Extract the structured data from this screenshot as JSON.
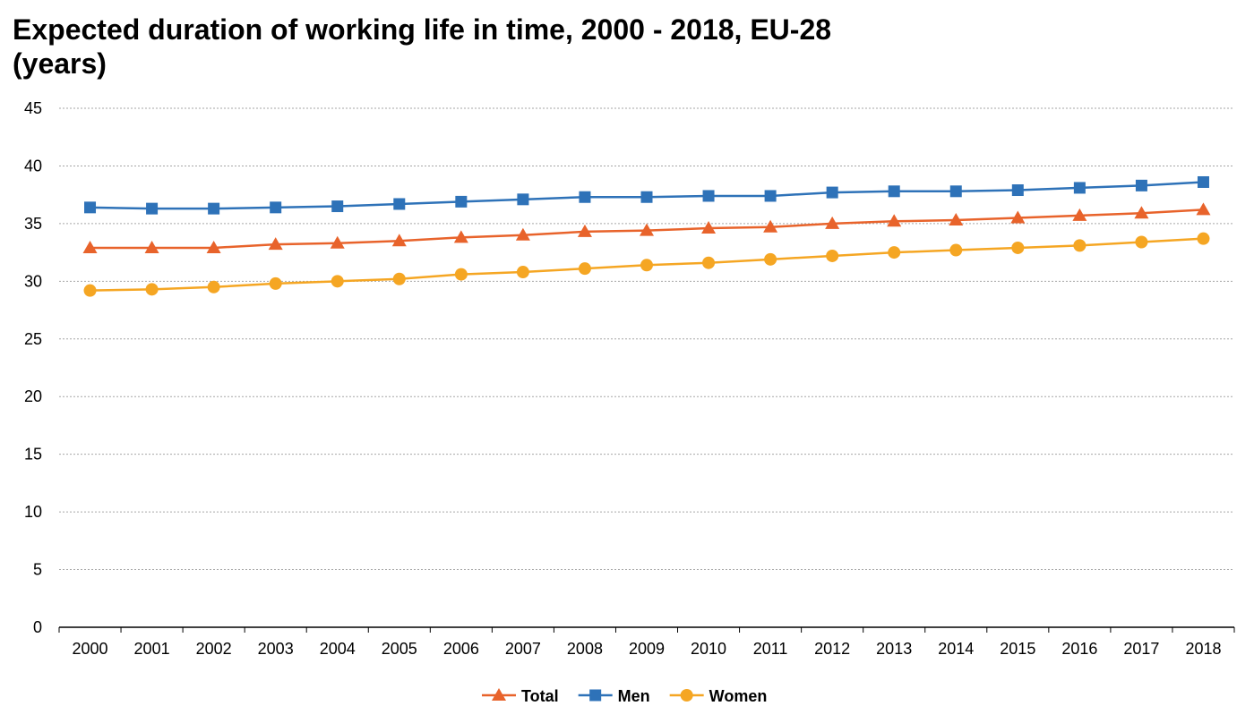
{
  "chart_data": {
    "type": "line",
    "title_lines": [
      "Expected duration of working life in time, 2000 - 2018, EU-28",
      "(years)"
    ],
    "categories": [
      "2000",
      "2001",
      "2002",
      "2003",
      "2004",
      "2005",
      "2006",
      "2007",
      "2008",
      "2009",
      "2010",
      "2011",
      "2012",
      "2013",
      "2014",
      "2015",
      "2016",
      "2017",
      "2018"
    ],
    "y_ticks": [
      "0",
      "5",
      "10",
      "15",
      "20",
      "25",
      "30",
      "35",
      "40",
      "45"
    ],
    "ylim": [
      0,
      45
    ],
    "grid": true,
    "legend_position": "bottom-center",
    "series": [
      {
        "name": "Total",
        "color": "#e8632b",
        "marker": "triangle",
        "values": [
          32.9,
          32.9,
          32.9,
          33.2,
          33.3,
          33.5,
          33.8,
          34.0,
          34.3,
          34.4,
          34.6,
          34.7,
          35.0,
          35.2,
          35.3,
          35.5,
          35.7,
          35.9,
          36.2
        ]
      },
      {
        "name": "Men",
        "color": "#2e72b8",
        "marker": "square",
        "values": [
          36.4,
          36.3,
          36.3,
          36.4,
          36.5,
          36.7,
          36.9,
          37.1,
          37.3,
          37.3,
          37.4,
          37.4,
          37.7,
          37.8,
          37.8,
          37.9,
          38.1,
          38.3,
          38.6
        ]
      },
      {
        "name": "Women",
        "color": "#f5a623",
        "marker": "circle",
        "values": [
          29.2,
          29.3,
          29.5,
          29.8,
          30.0,
          30.2,
          30.6,
          30.8,
          31.1,
          31.4,
          31.6,
          31.9,
          32.2,
          32.5,
          32.7,
          32.9,
          33.1,
          33.4,
          33.7
        ]
      }
    ]
  }
}
